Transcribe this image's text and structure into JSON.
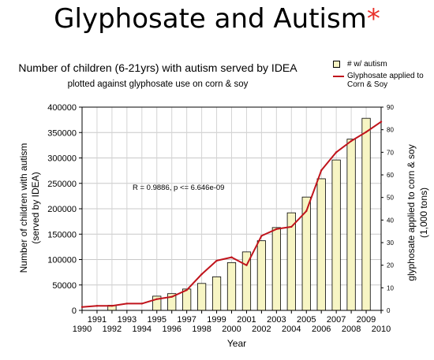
{
  "page_title": "Glyphosate and Autism",
  "page_title_asterisk": "*",
  "chart_data": {
    "type": "bar",
    "title": "Number of children (6-21yrs) with autism served by IDEA",
    "subtitle": "plotted against glyphosate use on corn & soy",
    "xlabel": "Year",
    "ylabel": "Number of children with autism",
    "ylabel_line2": "(served by IDEA)",
    "y2label": "glyphosate applied to corn & soy",
    "y2label_line2": "(1,000 tons)",
    "ylim": [
      0,
      400000
    ],
    "y2lim": [
      0,
      90
    ],
    "y_ticks": [
      "0",
      "50000",
      "100000",
      "150000",
      "200000",
      "250000",
      "300000",
      "350000",
      "400000"
    ],
    "y2_ticks": [
      "0",
      "10",
      "20",
      "30",
      "40",
      "50",
      "60",
      "70",
      "80",
      "90"
    ],
    "x_ticks_upper": [
      "1991",
      "1993",
      "1995",
      "1997",
      "1999",
      "2001",
      "2003",
      "2005",
      "2007",
      "2009"
    ],
    "x_ticks_lower": [
      "1990",
      "1992",
      "1994",
      "1996",
      "1998",
      "2000",
      "2002",
      "2004",
      "2006",
      "2008",
      "2010"
    ],
    "x_range": [
      1990,
      2010
    ],
    "annotation": "R = 0.9886, p <= 6.646e-09",
    "grid": true,
    "legend_placement": "top-right",
    "colors": {
      "bar": "#f7f5c4",
      "line": "#c0141c",
      "asterisk": "#e8302a"
    },
    "series": [
      {
        "name": "# w/ autism",
        "kind": "bar",
        "axis": "left",
        "x": [
          1991,
          1992,
          1993,
          1994,
          1995,
          1996,
          1997,
          1998,
          1999,
          2000,
          2001,
          2002,
          2003,
          2004,
          2005,
          2006,
          2007,
          2008,
          2009
        ],
        "values": [
          0,
          10000,
          0,
          0,
          28000,
          33000,
          42000,
          53000,
          66000,
          94000,
          115000,
          137000,
          163000,
          192000,
          223000,
          259000,
          296000,
          337000,
          378000
        ]
      },
      {
        "name": "Glyphosate applied to Corn & Soy",
        "kind": "line",
        "axis": "right",
        "x": [
          1990,
          1991,
          1992,
          1993,
          1994,
          1995,
          1996,
          1997,
          1998,
          1999,
          2000,
          2001,
          2002,
          2003,
          2004,
          2005,
          2006,
          2007,
          2008,
          2009,
          2010
        ],
        "values": [
          1.5,
          2,
          2,
          3,
          3,
          5,
          6,
          9,
          16,
          22,
          23.5,
          20,
          33,
          36,
          37,
          44,
          62,
          70,
          75,
          79,
          83.5
        ]
      }
    ]
  }
}
